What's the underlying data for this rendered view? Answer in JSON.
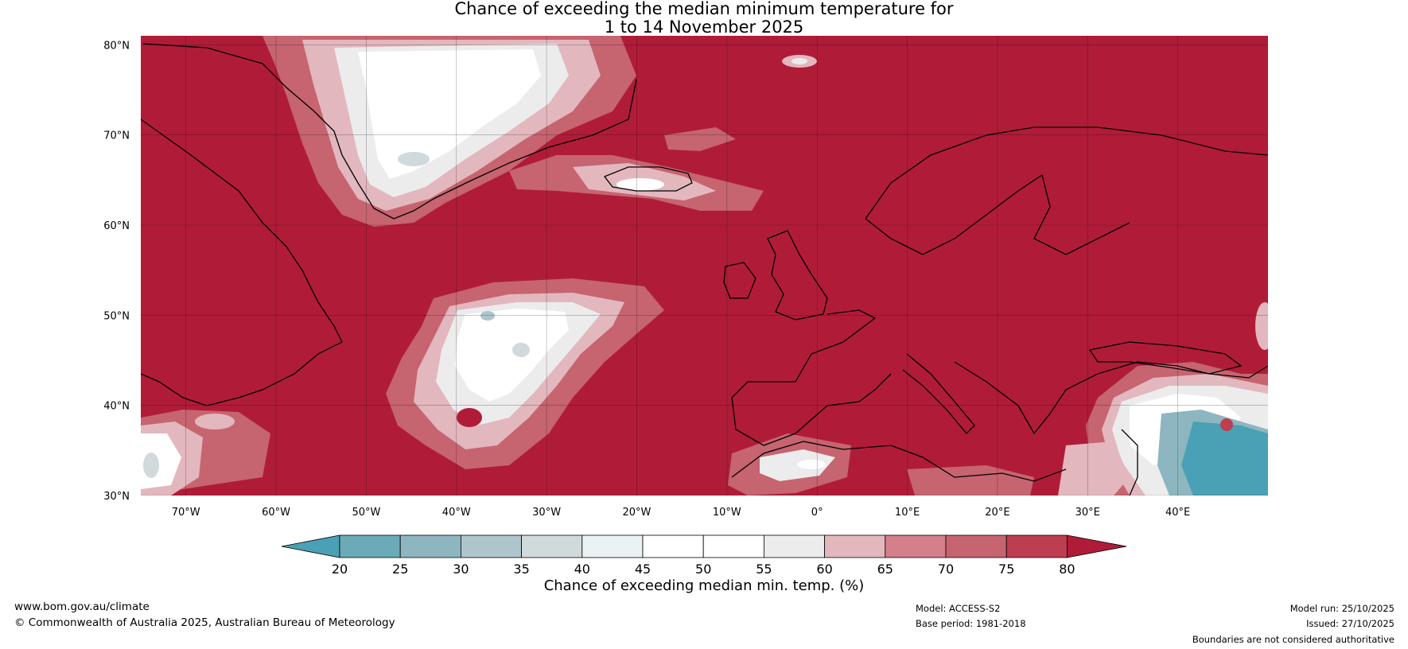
{
  "title": {
    "line1": "Chance of exceeding the median minimum temperature for",
    "line2": "1 to 14 November 2025"
  },
  "map": {
    "projection": "plate carree",
    "lon_range": [
      -75,
      50
    ],
    "lat_range": [
      30,
      81
    ],
    "background_color": "#b01c38",
    "lat_labels": [
      "30°N",
      "40°N",
      "50°N",
      "60°N",
      "70°N",
      "80°N"
    ],
    "lat_values": [
      30,
      40,
      50,
      60,
      70,
      80
    ],
    "lon_labels": [
      "70°W",
      "60°W",
      "50°W",
      "40°W",
      "30°W",
      "20°W",
      "10°W",
      "0°",
      "10°E",
      "20°E",
      "30°E",
      "40°E"
    ],
    "lon_values": [
      -70,
      -60,
      -50,
      -40,
      -30,
      -20,
      -10,
      0,
      10,
      20,
      30,
      40
    ],
    "gridlines": true
  },
  "colorbar": {
    "ticks": [
      "20",
      "25",
      "30",
      "35",
      "40",
      "45",
      "50",
      "55",
      "60",
      "65",
      "70",
      "75",
      "80"
    ],
    "colors": [
      "#4aa0b4",
      "#6caab7",
      "#8db6c0",
      "#aec5cb",
      "#d0dadb",
      "#eaf2f3",
      "#ffffff",
      "#ffffff",
      "#ececec",
      "#e3b7be",
      "#d47f8b",
      "#c66470",
      "#bd3e50",
      "#b01c38"
    ],
    "label": "Chance of exceeding median min. temp. (%)"
  },
  "footer": {
    "website": "www.bom.gov.au/climate",
    "copyright": "© Commonwealth of Australia 2025, Australian Bureau of Meteorology",
    "model": "Model: ACCESS-S2",
    "base_period": "Base period: 1981-2018",
    "model_run": "Model run: 25/10/2025",
    "issued": "Issued: 27/10/2025",
    "disclaimer": "Boundaries are not considered authoritative"
  }
}
